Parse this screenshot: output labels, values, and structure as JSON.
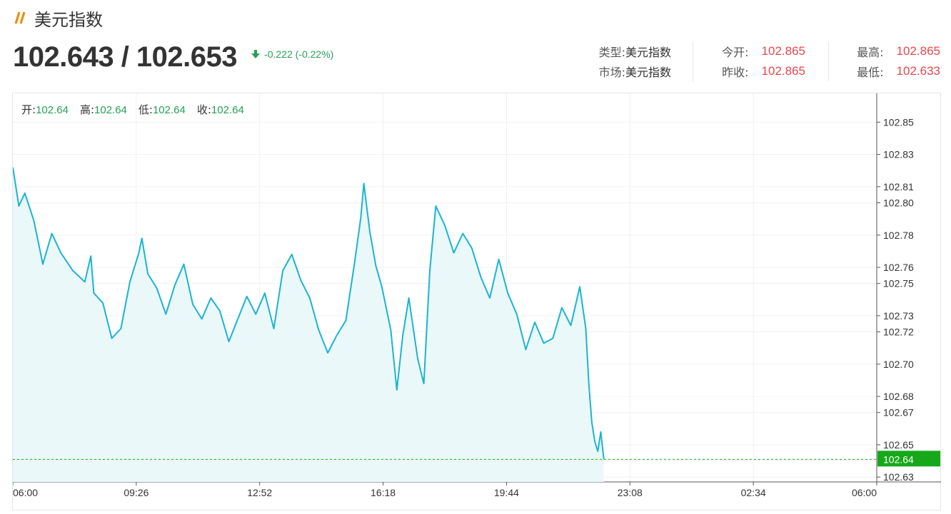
{
  "header": {
    "title": "美元指数",
    "price": "102.643 / 102.653",
    "change": "-0.222 (-0.22%)"
  },
  "stats": {
    "type_label": "类型:",
    "type_value": "美元指数",
    "market_label": "市场:",
    "market_value": "美元指数",
    "open_label": "今开:",
    "open_value": "102.865",
    "prev_close_label": "昨收:",
    "prev_close_value": "102.865",
    "high_label": "最高:",
    "high_value": "102.865",
    "low_label": "最低:",
    "low_value": "102.633"
  },
  "ohlc": {
    "open_label": "开:",
    "open_value": "102.64",
    "high_label": "高:",
    "high_value": "102.64",
    "low_label": "低:",
    "low_value": "102.64",
    "close_label": "收:",
    "close_value": "102.64"
  },
  "colors": {
    "line": "#1bb4cf",
    "area": "#eaf8fa",
    "up": "#e8464e",
    "down": "#24a158",
    "current_price_bg": "#17a81a"
  },
  "chart_data": {
    "type": "area",
    "title": "",
    "xlabel": "",
    "ylabel": "",
    "x_ticks": [
      "06:00",
      "09:26",
      "12:52",
      "16:18",
      "19:44",
      "23:08",
      "02:34",
      "06:00"
    ],
    "y_ticks": [
      "102.85",
      "102.83",
      "102.81",
      "102.80",
      "102.78",
      "102.76",
      "102.75",
      "102.73",
      "102.72",
      "102.70",
      "102.68",
      "102.67",
      "102.65",
      "102.63"
    ],
    "ylim": [
      102.627,
      102.859
    ],
    "current_price": "102.64",
    "current_price_value": 102.641,
    "grid": true,
    "series": [
      {
        "points": [
          [
            "06:00",
            102.822
          ],
          [
            "06:10",
            102.798
          ],
          [
            "06:20",
            102.806
          ],
          [
            "06:35",
            102.789
          ],
          [
            "06:50",
            102.762
          ],
          [
            "07:05",
            102.781
          ],
          [
            "07:20",
            102.769
          ],
          [
            "07:40",
            102.758
          ],
          [
            "08:00",
            102.751
          ],
          [
            "08:10",
            102.767
          ],
          [
            "08:15",
            102.744
          ],
          [
            "08:30",
            102.738
          ],
          [
            "08:45",
            102.716
          ],
          [
            "09:00",
            102.722
          ],
          [
            "09:15",
            102.751
          ],
          [
            "09:30",
            102.769
          ],
          [
            "09:35",
            102.778
          ],
          [
            "09:45",
            102.756
          ],
          [
            "10:00",
            102.747
          ],
          [
            "10:15",
            102.731
          ],
          [
            "10:30",
            102.749
          ],
          [
            "10:45",
            102.762
          ],
          [
            "11:00",
            102.737
          ],
          [
            "11:15",
            102.728
          ],
          [
            "11:30",
            102.741
          ],
          [
            "11:45",
            102.733
          ],
          [
            "12:00",
            102.714
          ],
          [
            "12:15",
            102.728
          ],
          [
            "12:30",
            102.742
          ],
          [
            "12:45",
            102.731
          ],
          [
            "13:00",
            102.744
          ],
          [
            "13:15",
            102.722
          ],
          [
            "13:30",
            102.758
          ],
          [
            "13:45",
            102.768
          ],
          [
            "14:00",
            102.752
          ],
          [
            "14:15",
            102.741
          ],
          [
            "14:30",
            102.721
          ],
          [
            "14:45",
            102.707
          ],
          [
            "15:00",
            102.718
          ],
          [
            "15:15",
            102.727
          ],
          [
            "15:30",
            102.764
          ],
          [
            "15:40",
            102.791
          ],
          [
            "15:45",
            102.812
          ],
          [
            "15:55",
            102.782
          ],
          [
            "16:05",
            102.761
          ],
          [
            "16:15",
            102.748
          ],
          [
            "16:30",
            102.721
          ],
          [
            "16:40",
            102.684
          ],
          [
            "16:50",
            102.718
          ],
          [
            "17:00",
            102.741
          ],
          [
            "17:15",
            102.703
          ],
          [
            "17:25",
            102.688
          ],
          [
            "17:35",
            102.758
          ],
          [
            "17:45",
            102.798
          ],
          [
            "18:00",
            102.786
          ],
          [
            "18:15",
            102.769
          ],
          [
            "18:30",
            102.781
          ],
          [
            "18:45",
            102.772
          ],
          [
            "19:00",
            102.754
          ],
          [
            "19:15",
            102.741
          ],
          [
            "19:30",
            102.765
          ],
          [
            "19:45",
            102.744
          ],
          [
            "20:00",
            102.731
          ],
          [
            "20:15",
            102.709
          ],
          [
            "20:30",
            102.726
          ],
          [
            "20:45",
            102.713
          ],
          [
            "21:00",
            102.716
          ],
          [
            "21:15",
            102.735
          ],
          [
            "21:30",
            102.724
          ],
          [
            "21:45",
            102.748
          ],
          [
            "21:55",
            102.722
          ],
          [
            "22:00",
            102.688
          ],
          [
            "22:05",
            102.664
          ],
          [
            "22:10",
            102.652
          ],
          [
            "22:15",
            102.646
          ],
          [
            "22:20",
            102.658
          ],
          [
            "22:25",
            102.641
          ]
        ]
      }
    ]
  }
}
